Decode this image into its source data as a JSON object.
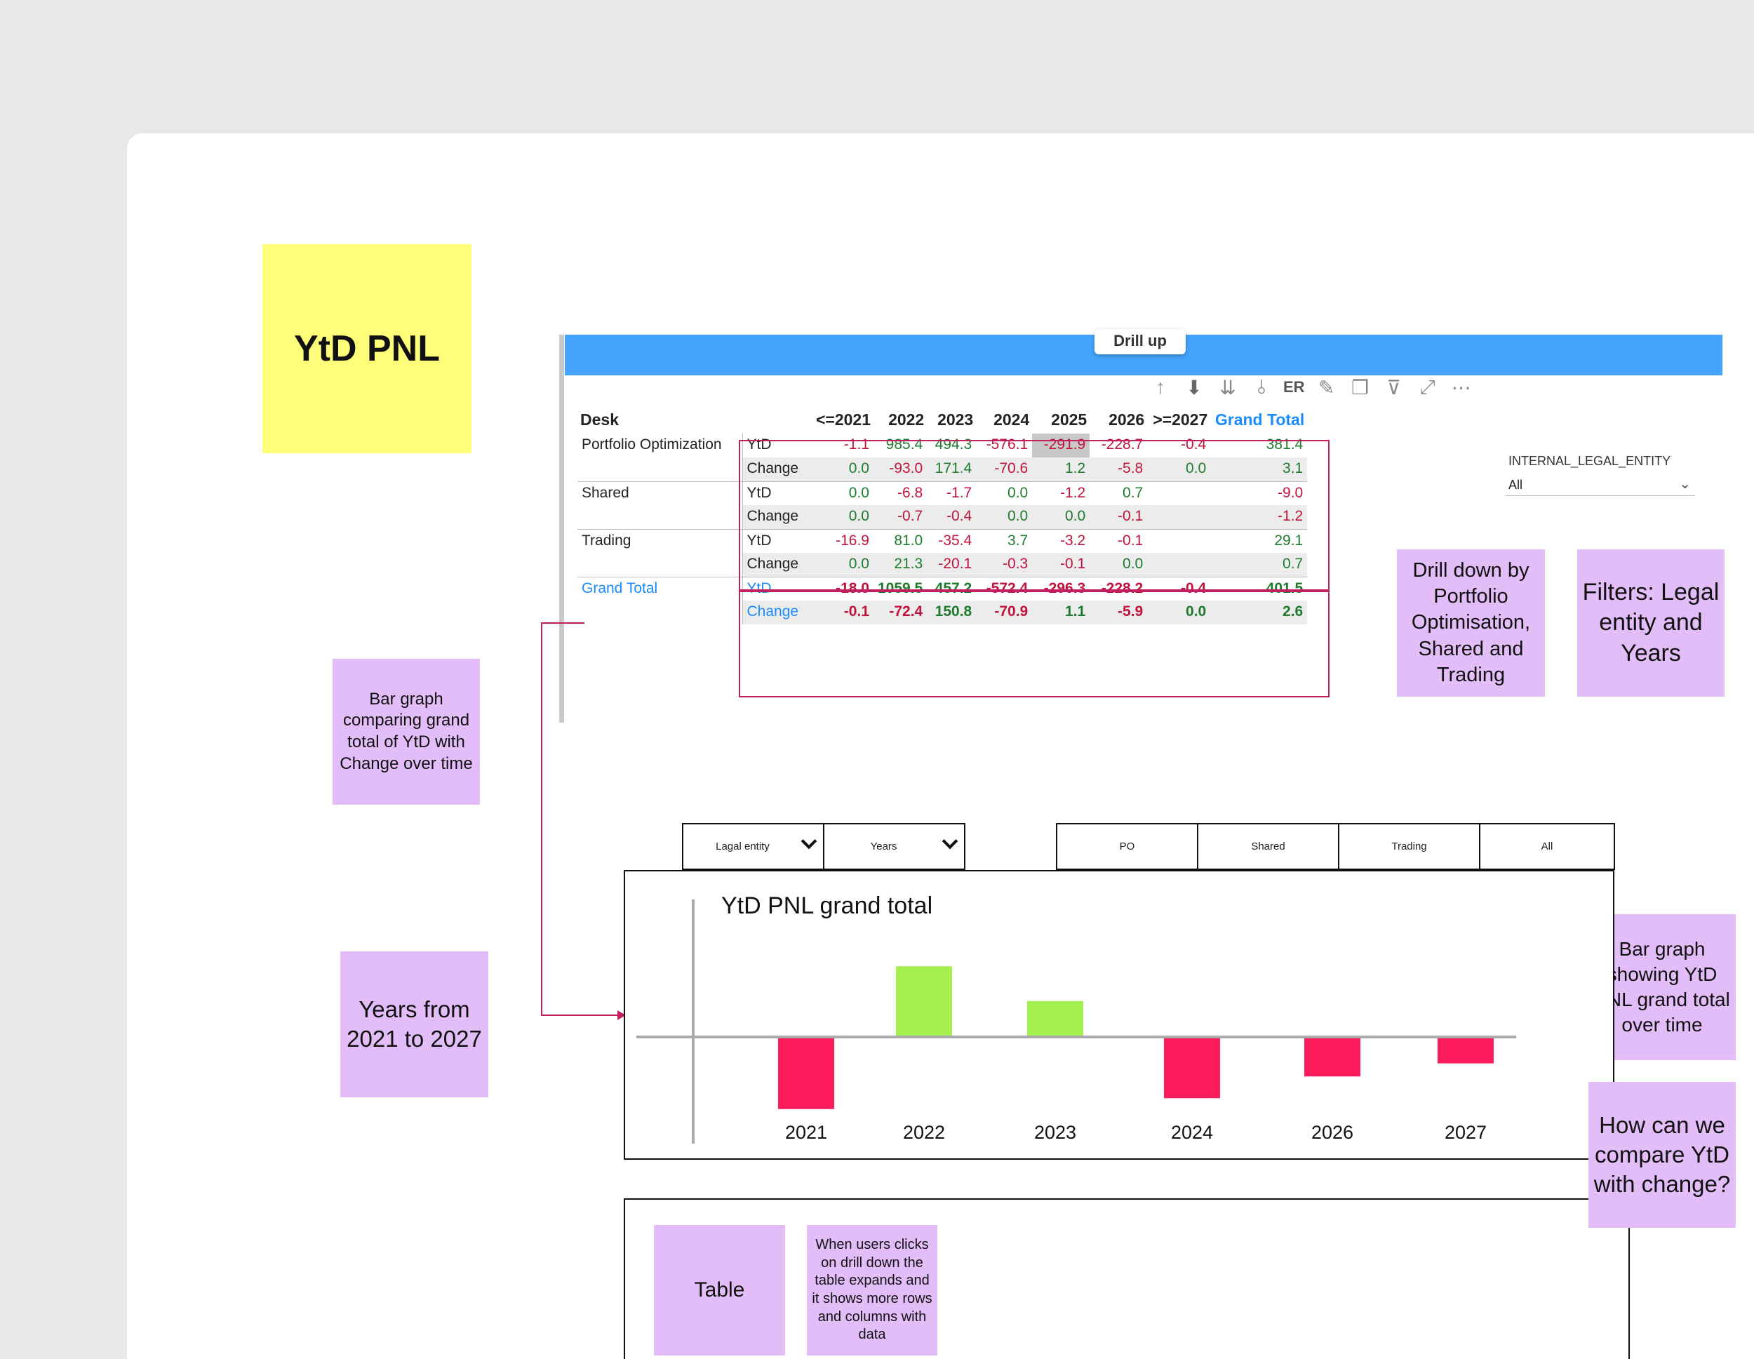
{
  "board": {
    "title_sticky": "YtD PNL",
    "notes": {
      "bar_graph_compare": "Bar graph comparing grand total of YtD with Change over time",
      "years_range": "Years from 2021 to 2027",
      "drill_down": "Drill down by Portfolio Optimisation, Shared and Trading",
      "filters": "Filters: Legal entity and Years",
      "bar_graph_ytd": "Bar graph showing YtD PNL grand total over time",
      "question": "How can we compare YtD with change?",
      "table": "Table",
      "table_note": "When users clicks on drill down the table expands and it shows more rows and columns with data"
    },
    "colors": {
      "sticky_yellow": "#fefe7a",
      "sticky_purple": "#e2bdf8",
      "connector": "#c21f5e",
      "bar_positive": "#a5ee50",
      "bar_negative": "#fc1c5c",
      "header_blue": "#44a3fb"
    }
  },
  "pbi": {
    "tooltip": "Drill up",
    "toolbar_icons": [
      "arrow-up-icon",
      "drill-down-circle-icon",
      "expand-all-icon",
      "expand-hierarchy-icon",
      "pin-icon",
      "copy-icon",
      "filter-icon",
      "focus-mode-icon",
      "more-options-icon"
    ],
    "toolbar_text": "ER",
    "headers": {
      "desk": "Desk",
      "years": [
        "<=2021",
        "2022",
        "2023",
        "2024",
        "2025",
        "2026",
        ">=2027"
      ],
      "grand_total": "Grand Total"
    },
    "rows": [
      {
        "desk": "Portfolio Optimization",
        "measure": "YtD",
        "values": [
          "-1.1",
          "985.4",
          "494.3",
          "-576.1",
          "-291.9",
          "-228.7",
          "-0.4"
        ],
        "total": "381.4"
      },
      {
        "desk": "",
        "measure": "Change",
        "values": [
          "0.0",
          "-93.0",
          "171.4",
          "-70.6",
          "1.2",
          "-5.8",
          "0.0"
        ],
        "total": "3.1"
      },
      {
        "desk": "Shared",
        "measure": "YtD",
        "values": [
          "0.0",
          "-6.8",
          "-1.7",
          "0.0",
          "-1.2",
          "0.7",
          ""
        ],
        "total": "-9.0"
      },
      {
        "desk": "",
        "measure": "Change",
        "values": [
          "0.0",
          "-0.7",
          "-0.4",
          "0.0",
          "0.0",
          "-0.1",
          ""
        ],
        "total": "-1.2"
      },
      {
        "desk": "Trading",
        "measure": "YtD",
        "values": [
          "-16.9",
          "81.0",
          "-35.4",
          "3.7",
          "-3.2",
          "-0.1",
          ""
        ],
        "total": "29.1"
      },
      {
        "desk": "",
        "measure": "Change",
        "values": [
          "0.0",
          "21.3",
          "-20.1",
          "-0.3",
          "-0.1",
          "0.0",
          ""
        ],
        "total": "0.7"
      },
      {
        "desk": "Grand Total",
        "measure": "YtD",
        "values": [
          "-18.0",
          "1059.5",
          "457.2",
          "-572.4",
          "-296.3",
          "-228.2",
          "-0.4"
        ],
        "total": "401.5"
      },
      {
        "desk": "",
        "measure": "Change",
        "values": [
          "-0.1",
          "-72.4",
          "150.8",
          "-70.9",
          "1.1",
          "-5.9",
          "0.0"
        ],
        "total": "2.6"
      }
    ],
    "filter": {
      "label": "INTERNAL_LEGAL_ENTITY",
      "value": "All"
    }
  },
  "wireframe": {
    "dropdowns": [
      "Lagal entity",
      "Years"
    ],
    "buttons": [
      "PO",
      "Shared",
      "Trading",
      "All"
    ]
  },
  "chart_data": {
    "type": "bar",
    "title": "YtD PNL grand total",
    "categories": [
      "2021",
      "2022",
      "2023",
      "2024",
      "2026",
      "2027"
    ],
    "values": [
      -0.65,
      0.65,
      0.33,
      -0.55,
      -0.35,
      -0.23
    ],
    "ylim": [
      -1,
      1
    ],
    "grid": false,
    "legend": "none"
  }
}
